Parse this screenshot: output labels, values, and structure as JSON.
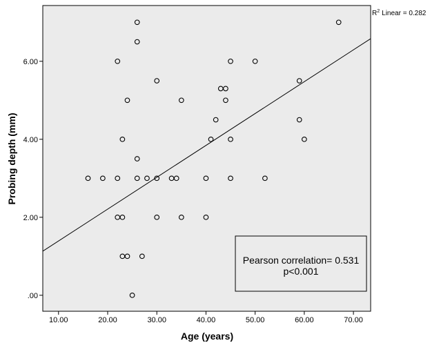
{
  "chart_data": {
    "type": "scatter",
    "x_label": "Age (years)",
    "y_label": "Probing depth (mm)",
    "r2_label": {
      "base": "R",
      "sup": "2",
      "text": "Linear = 0.282"
    },
    "annotation": [
      "Pearson correlation= 0.531",
      "p<0.001"
    ],
    "x": [
      16,
      19,
      22,
      22,
      22,
      23,
      23,
      23,
      24,
      24,
      25,
      26,
      26,
      26,
      26,
      27,
      28,
      30,
      30,
      30,
      33,
      34,
      35,
      35,
      40,
      40,
      41,
      42,
      43,
      44,
      44,
      45,
      45,
      45,
      50,
      52,
      59,
      59,
      60,
      67
    ],
    "values": [
      3,
      3,
      3,
      6,
      2,
      2,
      4,
      1,
      1,
      5,
      0,
      7,
      6.5,
      3.5,
      3,
      1,
      3,
      3,
      5.5,
      2,
      3,
      3,
      5,
      2,
      3,
      2,
      4,
      4.5,
      5.3,
      5.3,
      5,
      6,
      4,
      3,
      6,
      3,
      5.5,
      4.5,
      4,
      7
    ],
    "color": "#000000",
    "fit_line": {
      "intercept": 0.575,
      "slope": 0.0817
    },
    "xlim": [
      6.8,
      73.5
    ],
    "ylim": [
      -0.41,
      7.43
    ],
    "xticks": [
      {
        "value": 10,
        "label": "10.00"
      },
      {
        "value": 20,
        "label": "20.00"
      },
      {
        "value": 30,
        "label": "30.00"
      },
      {
        "value": 40,
        "label": "40.00"
      },
      {
        "value": 50,
        "label": "50.00"
      },
      {
        "value": 60,
        "label": "60.00"
      },
      {
        "value": 70,
        "label": "70.00"
      }
    ],
    "yticks": [
      {
        "value": 0,
        "label": ".00"
      },
      {
        "value": 2,
        "label": "2.00"
      },
      {
        "value": 4,
        "label": "4.00"
      },
      {
        "value": 6,
        "label": "6.00"
      }
    ]
  }
}
